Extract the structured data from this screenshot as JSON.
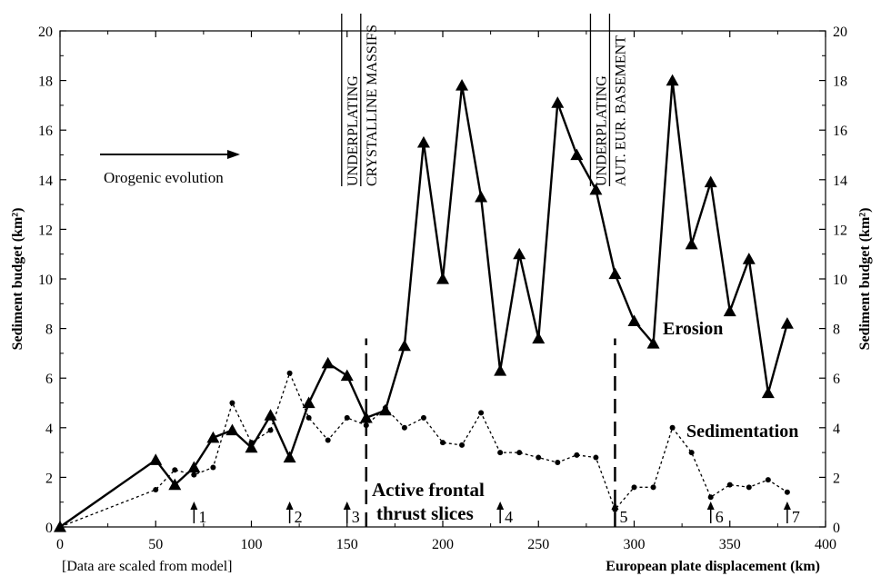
{
  "chart_data": {
    "type": "line",
    "x_axis": {
      "label": "European plate displacement (km)",
      "ticks": [
        "0",
        "50",
        "100",
        "150",
        "200",
        "250",
        "300",
        "350",
        "400"
      ],
      "lim": [
        0,
        400
      ]
    },
    "y_axis_left": {
      "label": "Sediment budget (km²)",
      "ticks": [
        "0",
        "2",
        "4",
        "6",
        "8",
        "10",
        "12",
        "14",
        "16",
        "18",
        "20"
      ],
      "lim": [
        0,
        20
      ]
    },
    "y_axis_right": {
      "label": "Sediment budget (km²)",
      "ticks": [
        "0",
        "2",
        "4",
        "6",
        "8",
        "10",
        "12",
        "14",
        "16",
        "18",
        "20"
      ],
      "lim": [
        0,
        20
      ]
    },
    "note": "[Data are scaled from model]",
    "series": [
      {
        "name": "Erosion",
        "style": "solid",
        "marker": "triangle",
        "x": [
          0,
          50,
          60,
          70,
          80,
          90,
          100,
          110,
          120,
          130,
          140,
          150,
          160,
          170,
          180,
          190,
          200,
          210,
          220,
          230,
          240,
          250,
          260,
          270,
          280,
          290,
          300,
          310,
          320,
          330,
          340,
          350,
          360,
          370,
          380
        ],
        "y": [
          0,
          2.7,
          1.7,
          2.4,
          3.6,
          3.9,
          3.2,
          4.5,
          2.8,
          5.0,
          6.6,
          6.1,
          4.4,
          4.7,
          7.3,
          15.5,
          10.0,
          17.8,
          13.3,
          6.3,
          11.0,
          7.6,
          17.1,
          15.0,
          13.6,
          10.2,
          8.3,
          7.4,
          18.0,
          11.4,
          13.9,
          8.7,
          10.8,
          5.4,
          8.2
        ]
      },
      {
        "name": "Sedimentation",
        "style": "dotted",
        "marker": "circle",
        "x": [
          0,
          50,
          60,
          70,
          80,
          90,
          100,
          110,
          120,
          130,
          140,
          150,
          160,
          170,
          180,
          190,
          200,
          210,
          220,
          230,
          240,
          250,
          260,
          270,
          280,
          290,
          300,
          310,
          320,
          330,
          340,
          350,
          360,
          370,
          380
        ],
        "y": [
          0,
          1.5,
          2.3,
          2.1,
          2.4,
          5.0,
          3.4,
          3.9,
          6.2,
          4.4,
          3.5,
          4.4,
          4.1,
          4.8,
          4.0,
          4.4,
          3.4,
          3.3,
          4.6,
          3.0,
          3.0,
          2.8,
          2.6,
          2.9,
          2.8,
          0.7,
          1.6,
          1.6,
          4.0,
          3.0,
          1.2,
          1.7,
          1.6,
          1.9,
          1.4
        ]
      }
    ],
    "phase_lines": [
      {
        "x": 160,
        "lines": [
          "UNDERPLATING",
          "CRYSTALLINE MASSIFS"
        ]
      },
      {
        "x": 290,
        "lines": [
          "UNDERPLATING",
          "AUT. EUR. BASEMENT"
        ]
      }
    ],
    "arrow_markers": [
      {
        "x": 70,
        "label": "1"
      },
      {
        "x": 120,
        "label": "2"
      },
      {
        "x": 150,
        "label": "3"
      },
      {
        "x": 230,
        "label": "4"
      },
      {
        "x": 290,
        "label": "5"
      },
      {
        "x": 340,
        "label": "6"
      },
      {
        "x": 380,
        "label": "7"
      }
    ],
    "annotations": {
      "orogenic_evolution": "Orogenic evolution",
      "frontal_line1": "Active frontal",
      "frontal_line2": "thrust slices"
    }
  }
}
